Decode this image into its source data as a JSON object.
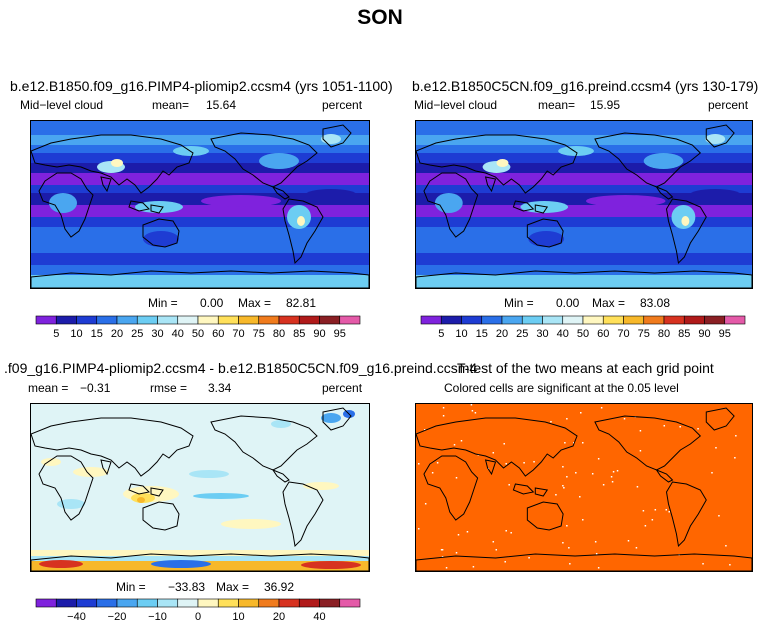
{
  "figure": {
    "title": "SON"
  },
  "panels": {
    "p1": {
      "title": "b.e12.B1850.f09_g16.PIMP4-pliomip2.ccsm4 (yrs 1051-1100)",
      "variable": "Mid−level cloud",
      "mean_label": "mean=",
      "mean": "15.64",
      "units": "percent",
      "min_label": "Min =",
      "min": "0.00",
      "max_label": "Max =",
      "max": "82.81"
    },
    "p2": {
      "title": "b.e12.B1850C5CN.f09_g16.preind.ccsm4 (yrs 130-179)",
      "variable": "Mid−level cloud",
      "mean_label": "mean=",
      "mean": "15.95",
      "units": "percent",
      "min_label": "Min =",
      "min": "0.00",
      "max_label": "Max =",
      "max": "83.08"
    },
    "p3": {
      "title": ".f09_g16.PIMP4-pliomip2.ccsm4 - b.e12.B1850C5CN.f09_g16.preind.ccsm4",
      "mean_label": "mean =",
      "mean": "−0.31",
      "rmse_label": "rmse =",
      "rmse": "3.34",
      "units": "percent",
      "min_label": "Min =",
      "min": "−33.83",
      "max_label": "Max =",
      "max": "36.92"
    },
    "p4": {
      "title": "T-test of the two means at each grid point",
      "subtitle": "Colored cells are significant at the 0.05 level",
      "color": "#ff6600"
    }
  },
  "chart_data": [
    {
      "type": "heatmap",
      "title": "b.e12.B1850.f09_g16.PIMP4-pliomip2.ccsm4 (yrs 1051-1100)",
      "variable": "Mid-level cloud",
      "units": "percent",
      "mean": 15.64,
      "min": 0.0,
      "max": 82.81,
      "colorbar_levels": [
        5,
        10,
        15,
        20,
        25,
        30,
        40,
        50,
        60,
        70,
        75,
        80,
        85,
        90,
        95
      ]
    },
    {
      "type": "heatmap",
      "title": "b.e12.B1850C5CN.f09_g16.preind.ccsm4 (yrs 130-179)",
      "variable": "Mid-level cloud",
      "units": "percent",
      "mean": 15.95,
      "min": 0.0,
      "max": 83.08,
      "colorbar_levels": [
        5,
        10,
        15,
        20,
        25,
        30,
        40,
        50,
        60,
        70,
        75,
        80,
        85,
        90,
        95
      ]
    },
    {
      "type": "heatmap",
      "title": ".f09_g16.PIMP4-pliomip2.ccsm4 - b.e12.B1850C5CN.f09_g16.preind.ccsm4",
      "units": "percent",
      "mean": -0.31,
      "rmse": 3.34,
      "min": -33.83,
      "max": 36.92,
      "colorbar_labels": [
        -40,
        -20,
        -10,
        0,
        10,
        20,
        40
      ]
    },
    {
      "type": "heatmap",
      "title": "T-test of the two means at each grid point",
      "subtitle": "Colored cells are significant at the 0.05 level"
    }
  ],
  "colorbars": {
    "cloud": {
      "colors": [
        "#7f22dd",
        "#1c1caa",
        "#1e3cd3",
        "#2a6fe8",
        "#4aa6f0",
        "#6ccdf3",
        "#a9e5f6",
        "#dff4f6",
        "#fff7c0",
        "#ffe05a",
        "#f7b82a",
        "#f07b1d",
        "#d73220",
        "#b01a1a",
        "#8a1f24",
        "#e45aa8"
      ],
      "labels": [
        "5",
        "10",
        "15",
        "20",
        "25",
        "30",
        "40",
        "50",
        "60",
        "70",
        "75",
        "80",
        "85",
        "90",
        "95"
      ]
    },
    "diff": {
      "colors": [
        "#7f22dd",
        "#1c1caa",
        "#1e3cd3",
        "#2a6fe8",
        "#4aa6f0",
        "#6ccdf3",
        "#a9e5f6",
        "#dff4f6",
        "#fff7c0",
        "#ffe05a",
        "#f7b82a",
        "#f07b1d",
        "#d73220",
        "#b01a1a",
        "#8a1f24",
        "#e45aa8"
      ],
      "labels": [
        "−40",
        "−20",
        "−10",
        "0",
        "10",
        "20",
        "40"
      ],
      "label_after_box": [
        1,
        3,
        5,
        7,
        9,
        11,
        13
      ]
    }
  }
}
